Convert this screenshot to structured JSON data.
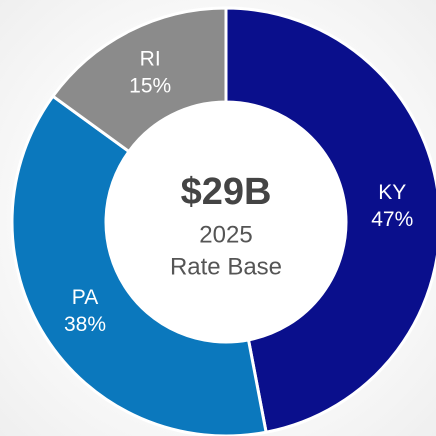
{
  "chart_data": {
    "type": "donut",
    "categories": [
      "KY",
      "PA",
      "RI"
    ],
    "values": [
      47,
      38,
      15
    ],
    "value_labels": [
      "47%",
      "38%",
      "15%"
    ],
    "colors": [
      "#0a0f8c",
      "#0b78bd",
      "#8b8b8b"
    ],
    "center_text": [
      "$29B",
      "2025",
      "Rate Base"
    ]
  }
}
